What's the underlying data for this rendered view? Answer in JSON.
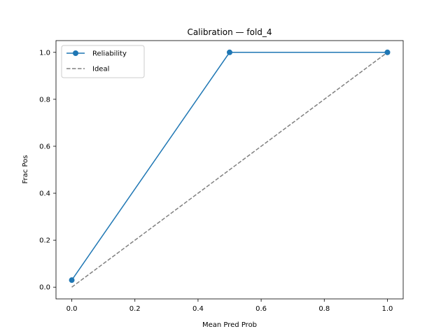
{
  "chart_data": {
    "type": "line",
    "title": "Calibration — fold_4",
    "xlabel": "Mean Pred Prob",
    "ylabel": "Frac Pos",
    "xlim": [
      -0.05,
      1.05
    ],
    "ylim": [
      -0.05,
      1.05
    ],
    "xticks": [
      0.0,
      0.2,
      0.4,
      0.6,
      0.8,
      1.0
    ],
    "yticks": [
      0.0,
      0.2,
      0.4,
      0.6,
      0.8,
      1.0
    ],
    "xtick_labels": [
      "0.0",
      "0.2",
      "0.4",
      "0.6",
      "0.8",
      "1.0"
    ],
    "ytick_labels": [
      "0.0",
      "0.2",
      "0.4",
      "0.6",
      "0.8",
      "1.0"
    ],
    "grid": false,
    "legend_position": "top-left",
    "series": [
      {
        "name": "Reliability",
        "x": [
          0.0,
          0.5,
          1.0
        ],
        "y": [
          0.03,
          1.0,
          1.0
        ],
        "color": "#1f77b4",
        "style": "solid",
        "marker": "circle"
      },
      {
        "name": "Ideal",
        "x": [
          0.0,
          1.0
        ],
        "y": [
          0.0,
          1.0
        ],
        "color": "#808080",
        "style": "dashed",
        "marker": "none"
      }
    ]
  }
}
